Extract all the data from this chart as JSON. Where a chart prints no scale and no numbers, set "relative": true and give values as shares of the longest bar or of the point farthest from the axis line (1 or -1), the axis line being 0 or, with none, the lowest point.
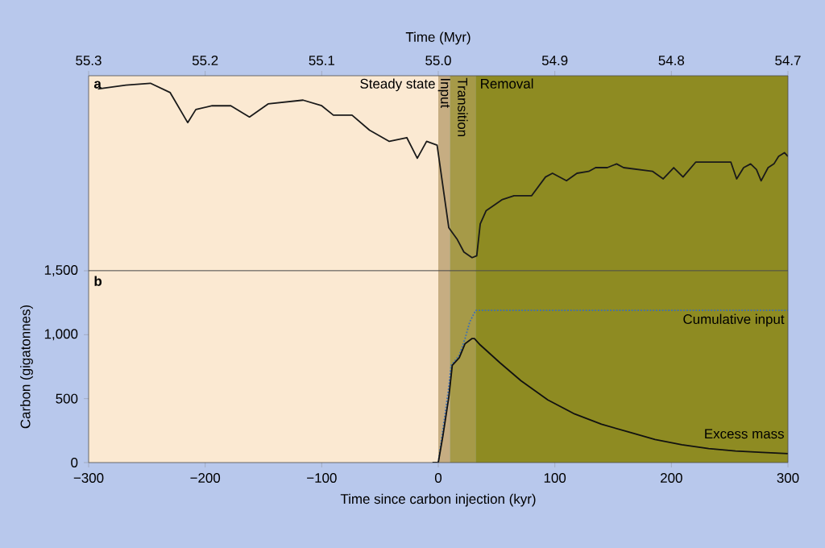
{
  "chart_data": [
    {
      "type": "line",
      "relative": true,
      "xlabel": "Time (Myr)",
      "xlim": [
        55.3,
        54.7
      ],
      "xticks": [
        55.3,
        55.2,
        55.1,
        {
          "value": 55.0,
          "label": "55.0"
        },
        54.9,
        54.8,
        54.7
      ],
      "annotations": [
        "a"
      ],
      "bands": [
        {
          "axis": "x",
          "from": 55.3,
          "to": 55.0,
          "label": "Steady state",
          "color": "#fbe9d2"
        },
        {
          "axis": "x",
          "from": 55.0,
          "to": 54.99,
          "label": "Input",
          "color": "#c6ad82"
        },
        {
          "axis": "x",
          "from": 54.99,
          "to": 54.968,
          "label": "Transition",
          "color": "#a69a48"
        },
        {
          "axis": "x",
          "from": 54.968,
          "to": 54.7,
          "label": "Removal",
          "color": "#8e8b22"
        }
      ],
      "series": [
        {
          "color": "#1a1a1a",
          "x": [
            55.292,
            55.268,
            55.247,
            55.23,
            55.215,
            55.208,
            55.194,
            55.178,
            55.162,
            55.146,
            55.116,
            55.1,
            55.09,
            55.074,
            55.059,
            55.042,
            55.027,
            55.018,
            55.01,
            55.001,
            54.991,
            54.984,
            54.978,
            54.971,
            54.967,
            54.964,
            54.959,
            54.945,
            54.935,
            54.92,
            54.908,
            54.902,
            54.89,
            54.881,
            54.871,
            54.865,
            54.855,
            54.847,
            54.841,
            54.816,
            54.807,
            54.798,
            54.79,
            54.779,
            54.749,
            54.744,
            54.738,
            54.732,
            54.727,
            54.723,
            54.717,
            54.712,
            54.708,
            54.703,
            54.7
          ],
          "values": [
            0.97,
            0.99,
            1,
            0.95,
            0.79,
            0.86,
            0.88,
            0.88,
            0.82,
            0.89,
            0.91,
            0.88,
            0.83,
            0.83,
            0.75,
            0.69,
            0.71,
            0.6,
            0.69,
            0.67,
            0.23,
            0.17,
            0.1,
            0.07,
            0.08,
            0.25,
            0.32,
            0.38,
            0.4,
            0.4,
            0.5,
            0.52,
            0.48,
            0.52,
            0.53,
            0.55,
            0.55,
            0.57,
            0.55,
            0.53,
            0.49,
            0.55,
            0.5,
            0.58,
            0.58,
            0.49,
            0.55,
            0.57,
            0.54,
            0.48,
            0.55,
            0.57,
            0.61,
            0.63,
            0.61
          ]
        }
      ]
    },
    {
      "type": "line",
      "xlabel": "Time since carbon injection (kyr)",
      "ylabel": "Carbon (gigatonnes)",
      "xlim": [
        -300,
        300
      ],
      "xticks": [
        {
          "value": -300,
          "label": "−300"
        },
        {
          "value": -200,
          "label": "−200"
        },
        {
          "value": -100,
          "label": "−100"
        },
        0,
        100,
        200,
        300
      ],
      "ylim": [
        0,
        1500
      ],
      "yticks": [
        0,
        500,
        {
          "value": 1000,
          "label": "1,000"
        },
        {
          "value": 1500,
          "label": "1,500"
        }
      ],
      "annotations": [
        "b"
      ],
      "bands": [
        {
          "axis": "x",
          "from": -300,
          "to": 0,
          "color": "#fbe9d2"
        },
        {
          "axis": "x",
          "from": 0,
          "to": 10,
          "color": "#c6ad82"
        },
        {
          "axis": "x",
          "from": 10,
          "to": 32,
          "color": "#a69a48"
        },
        {
          "axis": "x",
          "from": 32,
          "to": 300,
          "color": "#8e8b22"
        }
      ],
      "series": [
        {
          "name": "Cumulative input",
          "color": "#3a6fb8",
          "line_style": "dotted",
          "x": [
            0,
            4,
            9,
            11,
            18,
            23,
            27,
            32,
            300
          ],
          "values": [
            0,
            260,
            590,
            760,
            840,
            970,
            1100,
            1190,
            1190
          ]
        },
        {
          "name": "Excess mass",
          "color": "#111111",
          "line_style": "solid",
          "x": [
            -5,
            0,
            4,
            9,
            12,
            18,
            23,
            29,
            31,
            36,
            53,
            71,
            94,
            117,
            140,
            163,
            186,
            209,
            232,
            255,
            278,
            300
          ],
          "values": [
            0,
            0,
            210,
            510,
            760,
            820,
            930,
            970,
            970,
            920,
            780,
            640,
            490,
            380,
            300,
            240,
            180,
            140,
            110,
            90,
            80,
            70
          ]
        }
      ]
    }
  ]
}
